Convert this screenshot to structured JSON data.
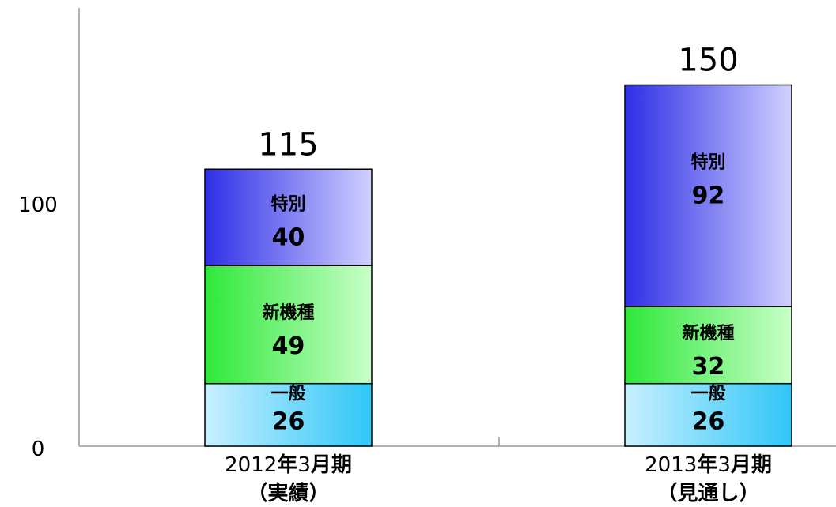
{
  "chart_data": {
    "type": "bar",
    "stacked": true,
    "categories": [
      {
        "line1_a": "2012",
        "line1_b": "年",
        "line1_c": "3",
        "line1_d": "月期",
        "line2": "（実績）"
      },
      {
        "line1_a": "2013",
        "line1_b": "年",
        "line1_c": "3",
        "line1_d": "月期",
        "line2": "（見通し）"
      }
    ],
    "series": [
      {
        "name": "一般",
        "values": [
          26,
          26
        ],
        "color_a": "#c8f0ff",
        "color_b": "#2fc6f7"
      },
      {
        "name": "新機種",
        "values": [
          49,
          32
        ],
        "color_a": "#2ee83a",
        "color_b": "#c8ffc8"
      },
      {
        "name": "特別",
        "values": [
          40,
          92
        ],
        "color_a": "#2e2ee6",
        "color_b": "#d0d0ff"
      }
    ],
    "totals": [
      "115",
      "150"
    ],
    "yticks": [
      "0",
      "100"
    ],
    "ylim": [
      0,
      175
    ],
    "grid": false,
    "legend": "none"
  },
  "colors": {
    "axis": "#999999",
    "bar_border": "#000000"
  }
}
